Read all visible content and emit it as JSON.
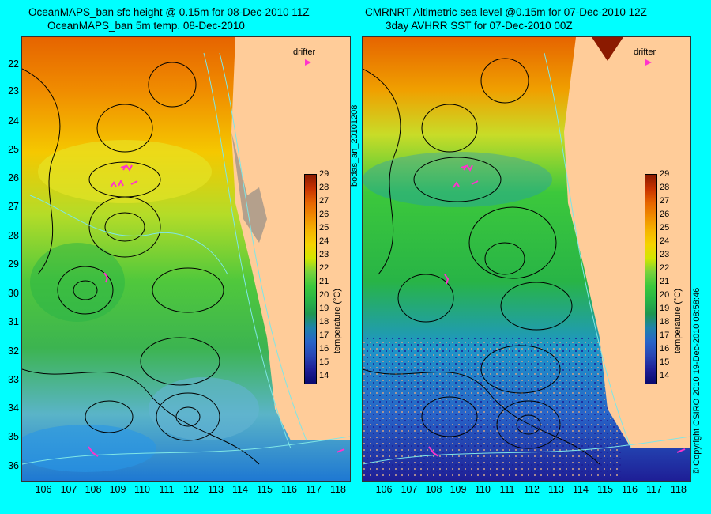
{
  "left_panel": {
    "title_line1": "OceanMAPS_ban sfc height @ 0.15m for 08-Dec-2010 11Z",
    "title_line2": "OceanMAPS_ban 5m temp. 08-Dec-2010",
    "drifter_label": "drifter"
  },
  "right_panel": {
    "title_line1": "CMRNRT Altimetric sea level  @0.15m  for 07-Dec-2010 12Z",
    "title_line2": "3day AVHRR SST for 07-Dec-2010 00Z",
    "drifter_label": "drifter"
  },
  "side_label": "bodas_an_20101208",
  "copyright_label": "© Copyright CSIRO 2010   19-Dec-2010 08:58:46",
  "latitudes": [
    "22",
    "23",
    "24",
    "25",
    "26",
    "27",
    "28",
    "29",
    "30",
    "31",
    "32",
    "33",
    "34",
    "35",
    "36"
  ],
  "longitudes": [
    "106",
    "107",
    "108",
    "109",
    "110",
    "111",
    "112",
    "113",
    "114",
    "115",
    "116",
    "117",
    "118"
  ],
  "colorbar": {
    "label": "temperature (°C)",
    "ticks": [
      "29",
      "28",
      "27",
      "26",
      "25",
      "24",
      "23",
      "22",
      "21",
      "20",
      "19",
      "18",
      "17",
      "16",
      "15",
      "14"
    ],
    "colors": [
      "#8b1a00",
      "#c83200",
      "#e66400",
      "#f08c00",
      "#f5b400",
      "#f5d200",
      "#d2e600",
      "#78d23c",
      "#3cc83c",
      "#28b446",
      "#1e9650",
      "#1e82aa",
      "#2864c8",
      "#2846b4",
      "#1e1e96",
      "#0a0a6e"
    ]
  },
  "colors": {
    "background": "#00ffff",
    "land": "#ffcc99",
    "drifter": "#ff33cc"
  }
}
